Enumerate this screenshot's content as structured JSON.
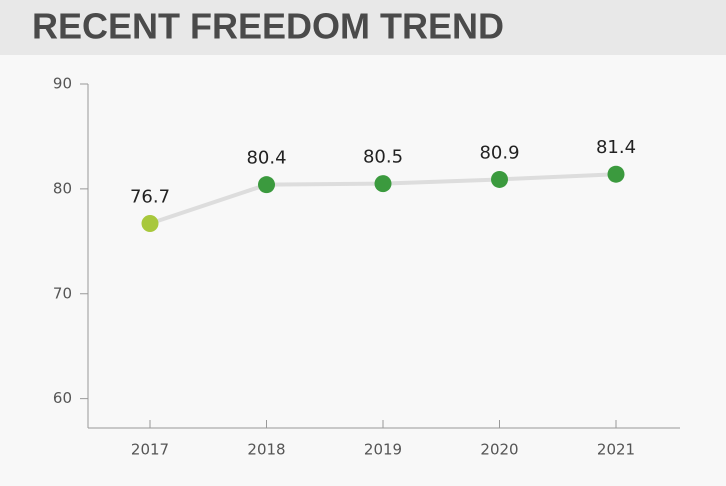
{
  "chart_data": {
    "type": "line",
    "title": "RECENT FREEDOM TREND",
    "categories": [
      "2017",
      "2018",
      "2019",
      "2020",
      "2021"
    ],
    "values": [
      76.7,
      80.4,
      80.5,
      80.9,
      81.4
    ],
    "point_colors": [
      "#a8c83c",
      "#3b9a3e",
      "#3b9a3e",
      "#3b9a3e",
      "#3b9a3e"
    ],
    "line_color": "#dddddd",
    "ylim": [
      57.2,
      90
    ],
    "yticks": [
      60,
      70,
      80,
      90
    ]
  }
}
